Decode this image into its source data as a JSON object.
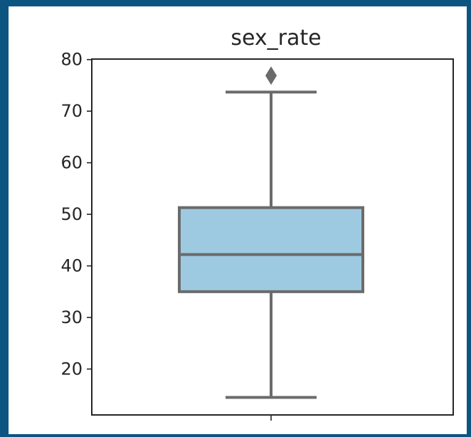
{
  "chart_data": {
    "type": "box",
    "title": "sex_rate",
    "xlabel": "",
    "ylabel": "",
    "ylim": [
      11.1,
      80.1
    ],
    "yticks": [
      20,
      30,
      40,
      50,
      60,
      70,
      80
    ],
    "series": [
      {
        "whisker_low": 14.5,
        "q1": 35,
        "median": 42.2,
        "q3": 51.3,
        "whisker_high": 73.7,
        "outliers": [
          76.9
        ]
      }
    ],
    "grid": false,
    "legend": "none"
  },
  "colors": {
    "box_fill": "#9ecae1",
    "line": "#6b6b6b",
    "axis": "#262626",
    "frame_border": "#0d5581"
  }
}
